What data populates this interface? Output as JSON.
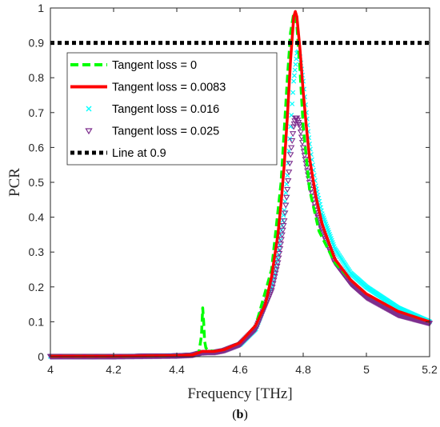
{
  "chart_data": {
    "type": "line",
    "title": "",
    "xlabel": "Frequency [THz]",
    "ylabel": "PCR",
    "xlim": [
      4,
      5.2
    ],
    "ylim": [
      0,
      1
    ],
    "xticks": [
      4,
      4.2,
      4.4,
      4.6,
      4.8,
      5,
      5.2
    ],
    "xtick_labels": [
      "4",
      "4.2",
      "4.4",
      "4.6",
      "4.8",
      "5",
      "5.2"
    ],
    "yticks": [
      0,
      0.1,
      0.2,
      0.3,
      0.4,
      0.5,
      0.6,
      0.7,
      0.8,
      0.9,
      1
    ],
    "ytick_labels": [
      "0",
      "0.1",
      "0.2",
      "0.3",
      "0.4",
      "0.5",
      "0.6",
      "0.7",
      "0.8",
      "0.9",
      "1"
    ],
    "grid": false,
    "legend_position": "upper-left",
    "caption": "b",
    "series": [
      {
        "name": "Tangent loss = 0",
        "style": "dashed",
        "color": "#00ff00",
        "x": [
          4.0,
          4.1,
          4.2,
          4.3,
          4.4,
          4.45,
          4.47,
          4.478,
          4.482,
          4.485,
          4.488,
          4.492,
          4.5,
          4.52,
          4.55,
          4.6,
          4.65,
          4.7,
          4.73,
          4.75,
          4.76,
          4.77,
          4.78,
          4.79,
          4.8,
          4.82,
          4.85,
          4.9,
          4.95,
          5.0,
          5.1,
          5.2
        ],
        "y": [
          0.001,
          0.001,
          0.001,
          0.002,
          0.003,
          0.005,
          0.012,
          0.06,
          0.14,
          0.1,
          0.045,
          0.025,
          0.018,
          0.015,
          0.02,
          0.04,
          0.09,
          0.25,
          0.5,
          0.8,
          0.93,
          0.985,
          0.95,
          0.82,
          0.66,
          0.48,
          0.36,
          0.27,
          0.22,
          0.18,
          0.13,
          0.1
        ]
      },
      {
        "name": "Tangent loss = 0.0083",
        "style": "solid",
        "color": "#ff0000",
        "x": [
          4.0,
          4.1,
          4.2,
          4.3,
          4.4,
          4.45,
          4.48,
          4.5,
          4.52,
          4.55,
          4.6,
          4.65,
          4.68,
          4.7,
          4.72,
          4.73,
          4.74,
          4.75,
          4.76,
          4.77,
          4.775,
          4.78,
          4.79,
          4.8,
          4.81,
          4.82,
          4.84,
          4.86,
          4.9,
          4.95,
          5.0,
          5.1,
          5.2
        ],
        "y": [
          0.001,
          0.001,
          0.001,
          0.002,
          0.003,
          0.005,
          0.015,
          0.015,
          0.015,
          0.02,
          0.04,
          0.09,
          0.15,
          0.23,
          0.35,
          0.44,
          0.55,
          0.69,
          0.85,
          0.975,
          0.99,
          0.975,
          0.88,
          0.76,
          0.66,
          0.57,
          0.46,
          0.38,
          0.28,
          0.22,
          0.18,
          0.13,
          0.1
        ]
      },
      {
        "name": "Tangent loss = 0.016",
        "style": "x-marker",
        "color": "#00ffff",
        "x": [
          4.0,
          4.1,
          4.2,
          4.3,
          4.4,
          4.45,
          4.48,
          4.5,
          4.52,
          4.55,
          4.6,
          4.65,
          4.7,
          4.72,
          4.74,
          4.75,
          4.76,
          4.77,
          4.78,
          4.785,
          4.79,
          4.8,
          4.81,
          4.82,
          4.84,
          4.86,
          4.9,
          4.95,
          5.0,
          5.1,
          5.2
        ],
        "y": [
          0.001,
          0.001,
          0.001,
          0.002,
          0.003,
          0.005,
          0.012,
          0.013,
          0.013,
          0.018,
          0.035,
          0.08,
          0.2,
          0.29,
          0.42,
          0.52,
          0.66,
          0.79,
          0.87,
          0.875,
          0.86,
          0.79,
          0.7,
          0.61,
          0.49,
          0.41,
          0.31,
          0.24,
          0.2,
          0.14,
          0.1
        ]
      },
      {
        "name": "Tangent loss = 0.025",
        "style": "triangle-marker",
        "color": "#7e2f8e",
        "x": [
          4.0,
          4.1,
          4.2,
          4.3,
          4.4,
          4.45,
          4.48,
          4.5,
          4.52,
          4.55,
          4.6,
          4.65,
          4.7,
          4.72,
          4.74,
          4.75,
          4.76,
          4.77,
          4.775,
          4.78,
          4.79,
          4.8,
          4.82,
          4.84,
          4.86,
          4.9,
          4.95,
          5.0,
          5.1,
          5.2
        ],
        "y": [
          0.001,
          0.001,
          0.001,
          0.002,
          0.003,
          0.005,
          0.012,
          0.013,
          0.013,
          0.018,
          0.035,
          0.08,
          0.19,
          0.27,
          0.39,
          0.48,
          0.58,
          0.66,
          0.685,
          0.685,
          0.66,
          0.6,
          0.5,
          0.42,
          0.36,
          0.27,
          0.21,
          0.17,
          0.12,
          0.096
        ]
      },
      {
        "name": "Line at 0.9",
        "style": "dotted",
        "color": "#000000",
        "x": [
          4.0,
          5.2
        ],
        "y": [
          0.9,
          0.9
        ]
      }
    ]
  }
}
